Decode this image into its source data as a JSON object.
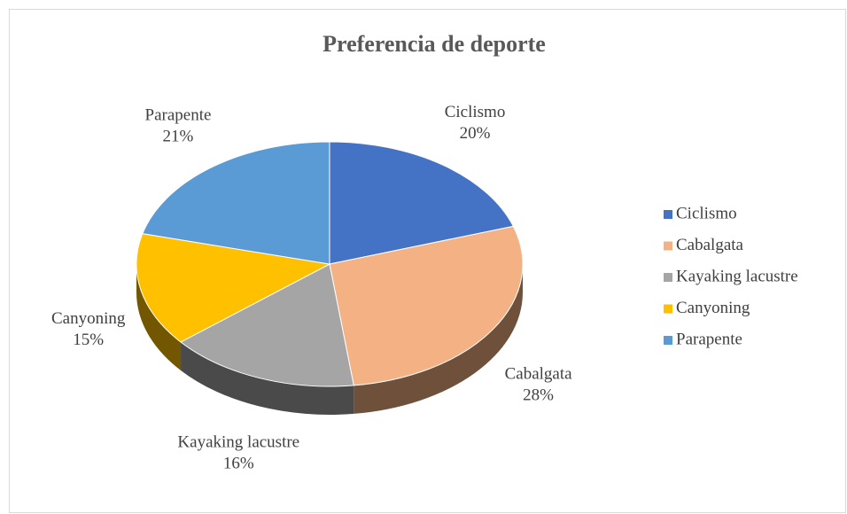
{
  "chart_data": {
    "type": "pie",
    "title": "Preferencia de deporte",
    "categories": [
      "Ciclismo",
      "Cabalgata",
      "Kayaking lacustre",
      "Canyoning",
      "Parapente"
    ],
    "values": [
      20,
      28,
      16,
      15,
      21
    ],
    "value_labels": [
      "20%",
      "28%",
      "16%",
      "15%",
      "21%"
    ],
    "colors": [
      "#4472c4",
      "#f4b183",
      "#a5a5a5",
      "#ffc000",
      "#5b9bd5"
    ],
    "legend": "right"
  }
}
